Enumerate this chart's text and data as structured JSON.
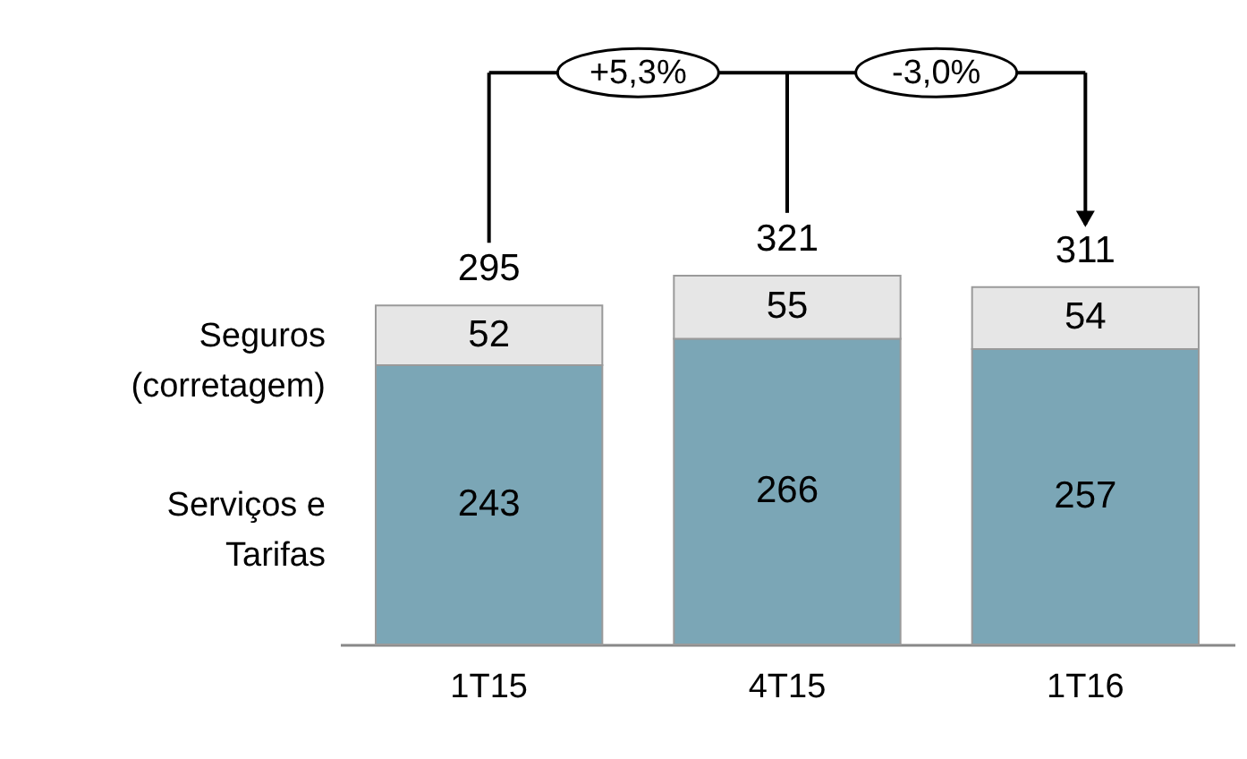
{
  "chart_data": {
    "type": "bar",
    "stacked": true,
    "data_labels": true,
    "categories": [
      "1T15",
      "4T15",
      "1T16"
    ],
    "series": [
      {
        "name": "Serviços e Tarifas",
        "color": "#7ba6b6",
        "values": [
          243,
          266,
          257
        ]
      },
      {
        "name": "Seguros (corretagem)",
        "color": "#e6e6e6",
        "values": [
          52,
          55,
          54
        ]
      }
    ],
    "totals": [
      "295",
      "321",
      "311"
    ],
    "annotations": [
      "+5,3%",
      "-3,0%"
    ]
  }
}
